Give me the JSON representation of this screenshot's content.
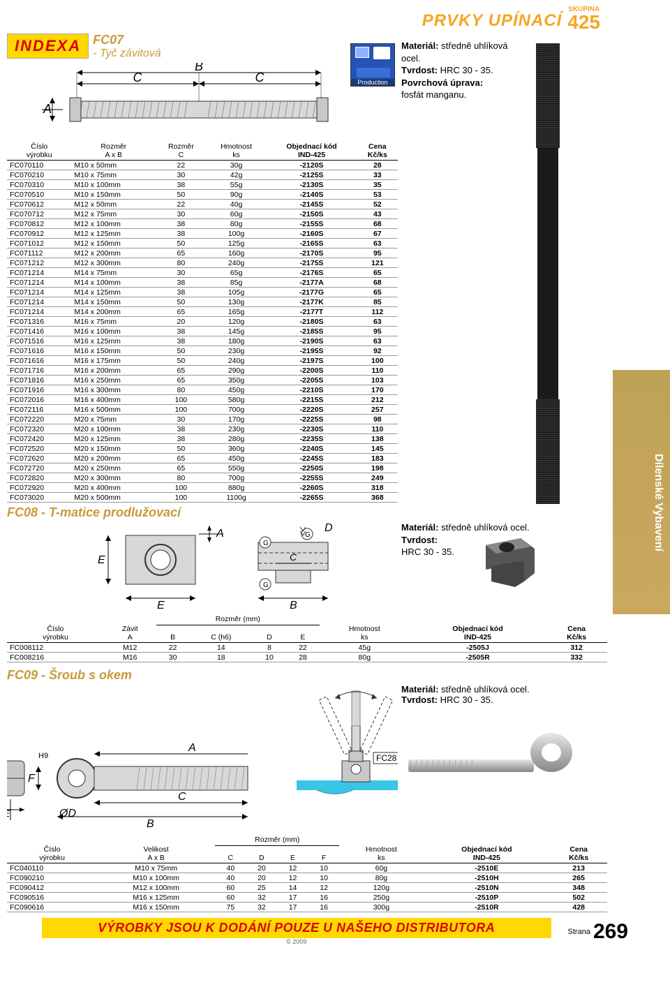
{
  "header": {
    "category": "PRVKY UPÍNACÍ",
    "group_label": "SKUPINA",
    "group_num": "425",
    "side_tab": "Dílenské Vybavení"
  },
  "logo": "INDEXA",
  "fc07": {
    "code": "FC07",
    "subtitle": "- Tyč závitová",
    "material_label": "Materiál:",
    "material_value": "středně uhlíková ocel.",
    "hardness_label": "Tvrdost:",
    "hardness_value": "HRC 30 - 35.",
    "surface_label": "Povrchová úprava:",
    "surface_value": "fosfát manganu.",
    "prod_label": "Production",
    "dim_A": "A",
    "dim_B": "B",
    "dim_C": "C",
    "headers": [
      "Číslo\nvýrobku",
      "Rozměr\nA x B",
      "Rozměr\nC",
      "Hmotnost\nks",
      "Objednací kód\nIND-425",
      "Cena\nKč/ks"
    ],
    "rows": [
      [
        "FC070110",
        "M10 x  50mm",
        "22",
        "30g",
        "-2120S",
        "28"
      ],
      [
        "FC070210",
        "M10 x  75mm",
        "30",
        "42g",
        "-2125S",
        "33"
      ],
      [
        "FC070310",
        "M10 x 100mm",
        "38",
        "55g",
        "-2130S",
        "35"
      ],
      [
        "FC070510",
        "M10 x 150mm",
        "50",
        "90g",
        "-2140S",
        "53"
      ],
      [
        "FC070612",
        "M12 x  50mm",
        "22",
        "40g",
        "-2145S",
        "52"
      ],
      [
        "FC070712",
        "M12 x  75mm",
        "30",
        "60g",
        "-2150S",
        "43"
      ],
      [
        "FC070812",
        "M12 x 100mm",
        "38",
        "80g",
        "-2155S",
        "68"
      ],
      [
        "FC070912",
        "M12 x 125mm",
        "38",
        "100g",
        "-2160S",
        "67"
      ],
      [
        "FC071012",
        "M12 x 150mm",
        "50",
        "125g",
        "-2165S",
        "63"
      ],
      [
        "FC071112",
        "M12 x 200mm",
        "65",
        "160g",
        "-2170S",
        "95"
      ],
      [
        "FC071212",
        "M12 x 300mm",
        "80",
        "240g",
        "-2175S",
        "121"
      ],
      [
        "FC071214",
        "M14 x  75mm",
        "30",
        "65g",
        "-2176S",
        "65"
      ],
      [
        "FC071214",
        "M14 x 100mm",
        "38",
        "85g",
        "-2177A",
        "68"
      ],
      [
        "FC071214",
        "M14 x 125mm",
        "38",
        "105g",
        "-2177G",
        "65"
      ],
      [
        "FC071214",
        "M14 x 150mm",
        "50",
        "130g",
        "-2177K",
        "85"
      ],
      [
        "FC071214",
        "M14 x 200mm",
        "65",
        "165g",
        "-2177T",
        "112"
      ],
      [
        "FC071316",
        "M16 x  75mm",
        "20",
        "120g",
        "-2180S",
        "63"
      ],
      [
        "FC071416",
        "M16 x 100mm",
        "38",
        "145g",
        "-2185S",
        "95"
      ],
      [
        "FC071516",
        "M16 x 125mm",
        "38",
        "180g",
        "-2190S",
        "63"
      ],
      [
        "FC071616",
        "M16 x 150mm",
        "50",
        "230g",
        "-2195S",
        "92"
      ],
      [
        "FC071616",
        "M16 x 175mm",
        "50",
        "240g",
        "-2197S",
        "100"
      ],
      [
        "FC071716",
        "M16 x 200mm",
        "65",
        "290g",
        "-2200S",
        "110"
      ],
      [
        "FC071816",
        "M16 x 250mm",
        "65",
        "350g",
        "-2205S",
        "103"
      ],
      [
        "FC071916",
        "M16 x 300mm",
        "80",
        "450g",
        "-2210S",
        "170"
      ],
      [
        "FC072016",
        "M16 x 400mm",
        "100",
        "580g",
        "-2215S",
        "212"
      ],
      [
        "FC072116",
        "M16 x 500mm",
        "100",
        "700g",
        "-2220S",
        "257"
      ],
      [
        "FC072220",
        "M20 x  75mm",
        "30",
        "170g",
        "-2225S",
        "98"
      ],
      [
        "FC072320",
        "M20 x 100mm",
        "38",
        "230g",
        "-2230S",
        "110"
      ],
      [
        "FC072420",
        "M20 x 125mm",
        "38",
        "280g",
        "-2235S",
        "138"
      ],
      [
        "FC072520",
        "M20 x 150mm",
        "50",
        "360g",
        "-2240S",
        "145"
      ],
      [
        "FC072620",
        "M20 x 200mm",
        "65",
        "450g",
        "-2245S",
        "183"
      ],
      [
        "FC072720",
        "M20 x 250mm",
        "65",
        "550g",
        "-2250S",
        "198"
      ],
      [
        "FC072820",
        "M20 x 300mm",
        "80",
        "700g",
        "-2255S",
        "249"
      ],
      [
        "FC072920",
        "M20 x 400mm",
        "100",
        "880g",
        "-2260S",
        "318"
      ],
      [
        "FC073020",
        "M20 x 500mm",
        "100",
        "1100g",
        "-2265S",
        "368"
      ]
    ]
  },
  "fc08": {
    "title": "FC08 - T-matice prodlužovací",
    "material_label": "Materiál:",
    "material_value": "středně uhlíková ocel.",
    "hardness_label": "Tvrdost:",
    "hardness_value": "HRC 30 - 35.",
    "dims": {
      "A": "A",
      "B": "B",
      "C": "C",
      "D": "D",
      "E": "E",
      "G": "G"
    },
    "rozm_group": "Rozměr (mm)",
    "headers": [
      "Číslo\nvýrobku",
      "Závit\nA",
      "B",
      "C (h6)",
      "D",
      "E",
      "Hmotnost\nks",
      "Objednací kód\nIND-425",
      "Cena\nKč/ks"
    ],
    "rows": [
      [
        "FC008112",
        "M12",
        "22",
        "14",
        "8",
        "22",
        "45g",
        "-2505J",
        "312"
      ],
      [
        "FC008216",
        "M16",
        "30",
        "18",
        "10",
        "28",
        "80g",
        "-2505R",
        "332"
      ]
    ]
  },
  "fc09": {
    "title": "FC09 - Šroub s okem",
    "material_label": "Materiál:",
    "material_value": "středně uhlíková ocel.",
    "hardness_label": "Tvrdost:",
    "hardness_value": "HRC 30 - 35.",
    "fc28": "FC28",
    "dims": {
      "A": "A",
      "B": "B",
      "C": "C",
      "D": "ØD",
      "E": "E",
      "F": "F",
      "H9": "H9"
    },
    "rozm_group": "Rozměr (mm)",
    "headers": [
      "Číslo\nvýrobku",
      "Velikost\nA x B",
      "C",
      "D",
      "E",
      "F",
      "Hmotnost\nks",
      "Objednací kód\nIND-425",
      "Cena\nKč/ks"
    ],
    "rows": [
      [
        "FC040110",
        "M10 x  75mm",
        "40",
        "20",
        "12",
        "10",
        "60g",
        "-2510E",
        "213"
      ],
      [
        "FC090210",
        "M10 x 100mm",
        "40",
        "20",
        "12",
        "10",
        "80g",
        "-2510H",
        "265"
      ],
      [
        "FC090412",
        "M12 x 100mm",
        "60",
        "25",
        "14",
        "12",
        "120g",
        "-2510N",
        "348"
      ],
      [
        "FC090516",
        "M16 x 125mm",
        "60",
        "32",
        "17",
        "16",
        "250g",
        "-2510P",
        "502"
      ],
      [
        "FC090616",
        "M16 x 150mm",
        "75",
        "32",
        "17",
        "16",
        "300g",
        "-2510R",
        "428"
      ]
    ]
  },
  "footer": {
    "text": "VÝROBKY JSOU K DODÁNÍ POUZE U NAŠEHO DISTRIBUTORA",
    "copy": "© 2009",
    "strana": "Strana",
    "page": "269"
  }
}
